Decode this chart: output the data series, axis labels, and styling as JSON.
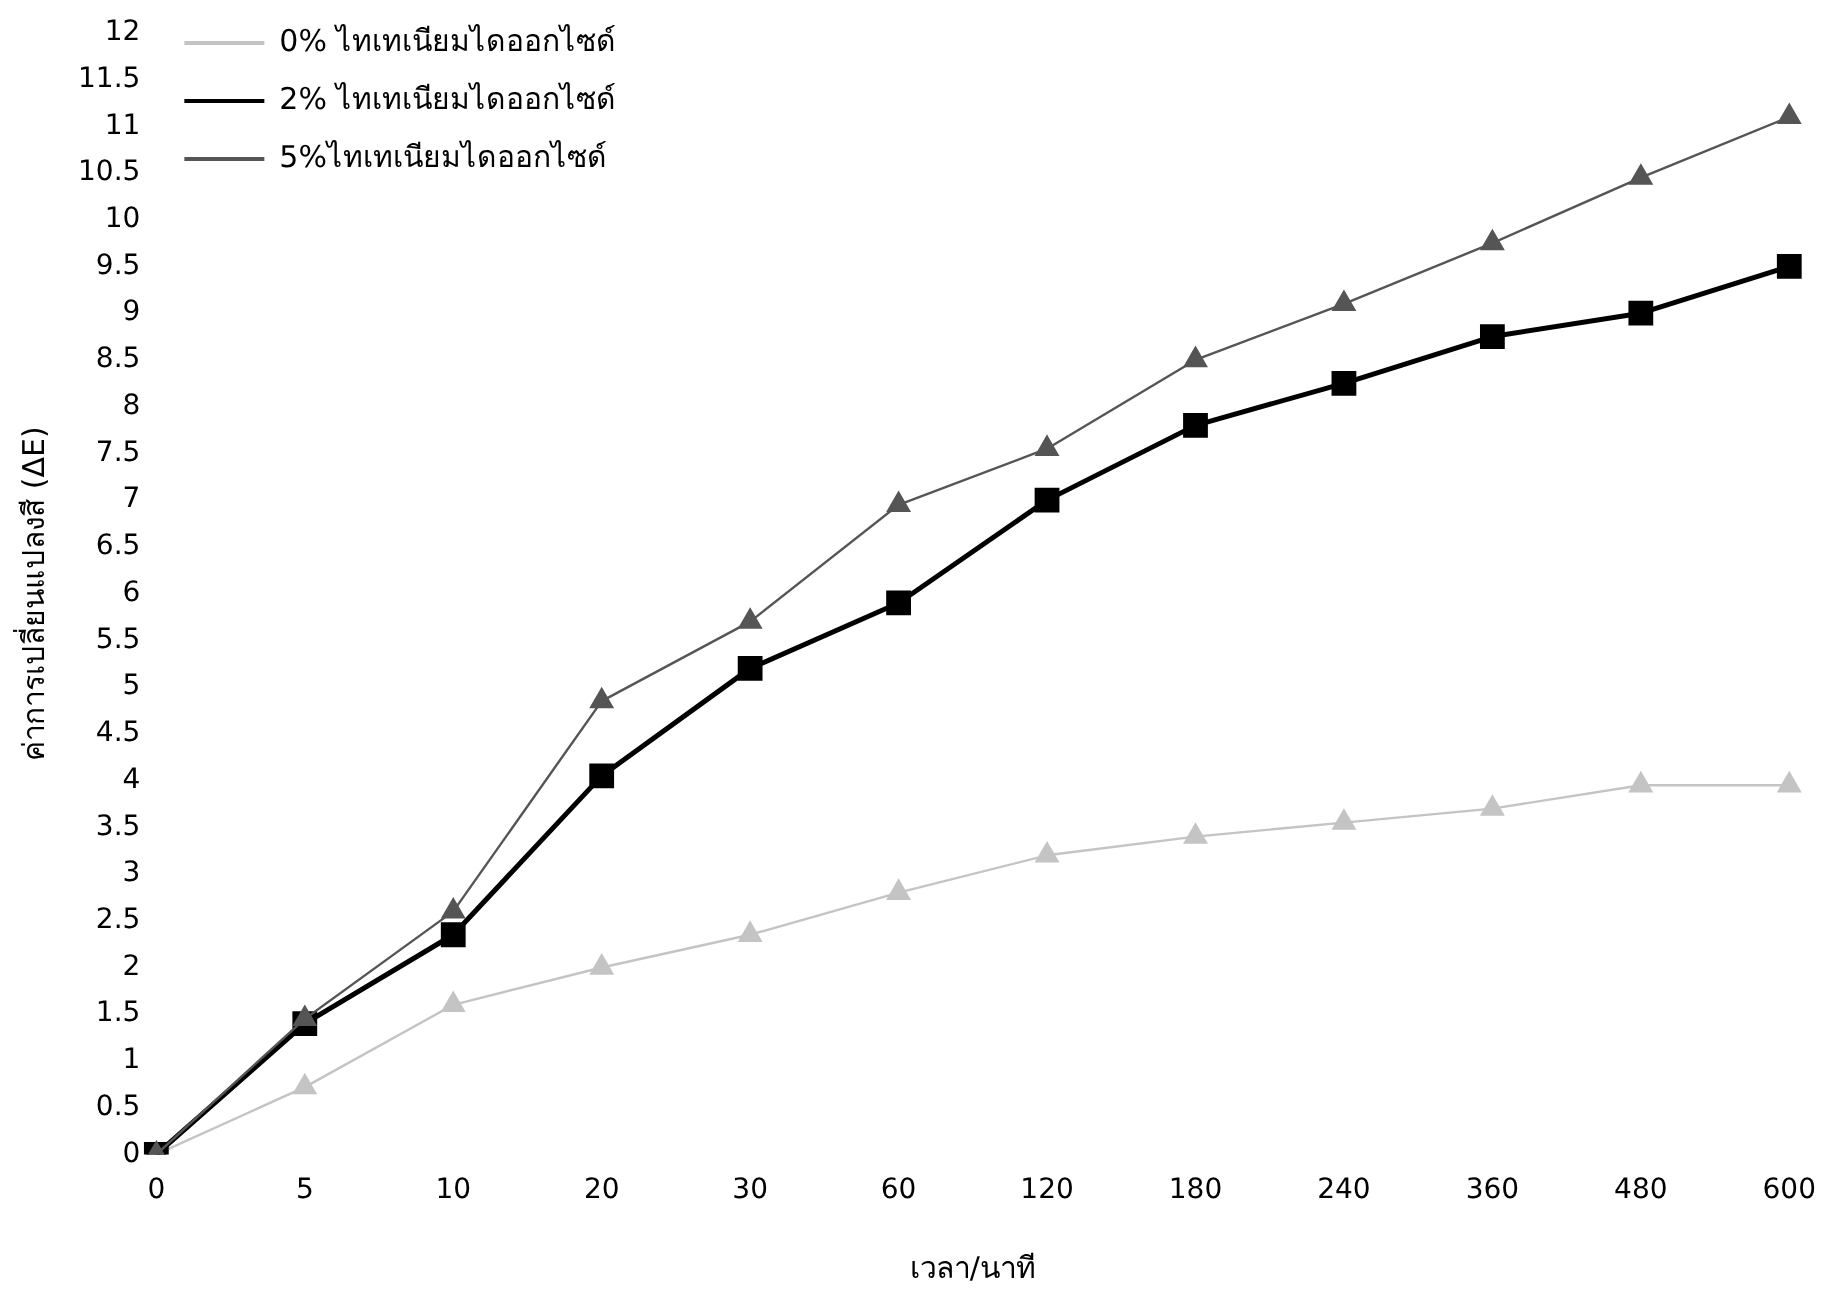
{
  "chart_data": {
    "type": "line",
    "xlabel": "เวลา/นาที",
    "ylabel": "ค่าการเปลี่ยนแปลงสี (ΔE)",
    "categories": [
      "0",
      "5",
      "10",
      "20",
      "30",
      "60",
      "120",
      "180",
      "240",
      "360",
      "480",
      "600"
    ],
    "series": [
      {
        "name": "0% ไทเทเนียมไดออกไซด์",
        "color": "#c4c4c4",
        "marker": "triangle",
        "values": [
          0,
          0.72,
          1.6,
          2.0,
          2.35,
          2.8,
          3.2,
          3.4,
          3.55,
          3.7,
          3.95,
          3.95
        ]
      },
      {
        "name": "2% ไทเทเนียมไดออกไซด์",
        "color": "#000000",
        "marker": "square",
        "values": [
          0,
          1.4,
          2.35,
          4.05,
          5.2,
          5.9,
          7.0,
          7.8,
          8.25,
          8.75,
          9.0,
          9.5
        ]
      },
      {
        "name": "5%ไทเทเนียมไดออกไซด์",
        "color": "#555555",
        "marker": "triangle",
        "values": [
          0,
          1.45,
          2.6,
          4.85,
          5.7,
          6.95,
          7.55,
          8.5,
          9.1,
          9.75,
          10.45,
          11.1
        ]
      }
    ],
    "ylim": [
      0,
      12
    ],
    "yticks": [
      0,
      0.5,
      1,
      1.5,
      2,
      2.5,
      3,
      3.5,
      4,
      4.5,
      5,
      5.5,
      6,
      6.5,
      7,
      7.5,
      8,
      8.5,
      9,
      9.5,
      10,
      10.5,
      11,
      11.5,
      12
    ],
    "grid": false,
    "legend": "top left",
    "line_style": "solid"
  }
}
